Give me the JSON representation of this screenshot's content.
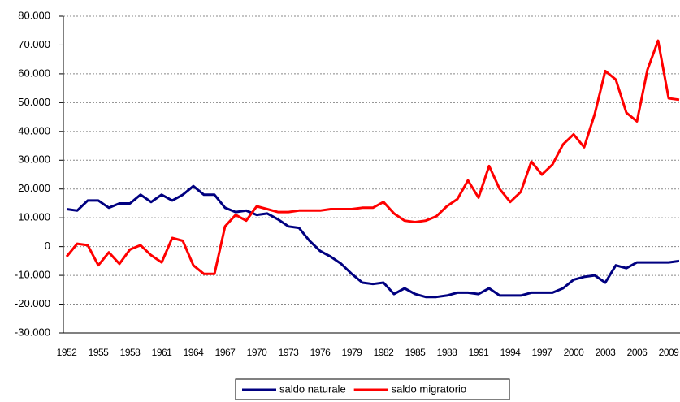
{
  "chart_data": {
    "type": "line",
    "categories": [
      "1952",
      null,
      null,
      "1955",
      null,
      null,
      "1958",
      null,
      null,
      "1961",
      null,
      null,
      "1964",
      null,
      null,
      "1967",
      null,
      null,
      "1970",
      null,
      null,
      "1973",
      null,
      null,
      "1976",
      null,
      null,
      "1979",
      null,
      null,
      "1982",
      null,
      null,
      "1985",
      null,
      null,
      "1988",
      null,
      null,
      "1991",
      null,
      null,
      "1994",
      null,
      null,
      "1997",
      null,
      null,
      "2000",
      null,
      null,
      "2003",
      null,
      null,
      "2006",
      null,
      null,
      "2009",
      null
    ],
    "series": [
      {
        "name": "saldo naturale",
        "color": "#000080",
        "values": [
          13000,
          12500,
          16000,
          16000,
          13500,
          15000,
          15000,
          18000,
          15500,
          18000,
          16000,
          18000,
          21000,
          18000,
          18000,
          13500,
          12000,
          12500,
          11000,
          11500,
          9500,
          7000,
          6500,
          2000,
          -1500,
          -3500,
          -6000,
          -9500,
          -12500,
          -13000,
          -12500,
          -16500,
          -14500,
          -16500,
          -17500,
          -17500,
          -17000,
          -16000,
          -16000,
          -16500,
          -14500,
          -17000,
          -17000,
          -17000,
          -16000,
          -16000,
          -16000,
          -14500,
          -11500,
          -10500,
          -10000,
          -12500,
          -6500,
          -7500,
          -5500,
          -5500,
          -5500,
          -5500,
          -5000
        ]
      },
      {
        "name": "saldo migratorio",
        "color": "#ff0000",
        "values": [
          -3500,
          1000,
          500,
          -6500,
          -2000,
          -6000,
          -1000,
          500,
          -3000,
          -5500,
          3000,
          2000,
          -6500,
          -9500,
          -9500,
          7000,
          11000,
          9000,
          14000,
          13000,
          12000,
          12000,
          12500,
          12500,
          12500,
          13000,
          13000,
          13000,
          13500,
          13500,
          15500,
          11500,
          9000,
          8500,
          9000,
          10500,
          14000,
          16500,
          23000,
          17000,
          28000,
          20000,
          15500,
          19000,
          29500,
          25000,
          28500,
          35500,
          39000,
          34500,
          46000,
          61000,
          58000,
          46500,
          43500,
          61500,
          71500,
          51500,
          51000
        ]
      }
    ],
    "ylim": [
      -30000,
      80000
    ],
    "yticks": [
      {
        "value": -30000,
        "label": "-30.000"
      },
      {
        "value": -20000,
        "label": "-20.000"
      },
      {
        "value": -10000,
        "label": "-10.000"
      },
      0,
      {
        "value": 10000,
        "label": "10.000"
      },
      {
        "value": 20000,
        "label": "20.000"
      },
      {
        "value": 30000,
        "label": "30.000"
      },
      {
        "value": 40000,
        "label": "40.000"
      },
      {
        "value": 50000,
        "label": "50.000"
      },
      {
        "value": 60000,
        "label": "60.000"
      },
      {
        "value": 70000,
        "label": "70.000"
      },
      {
        "value": 80000,
        "label": "80.000"
      }
    ],
    "grid": true,
    "legend": "bottom"
  }
}
